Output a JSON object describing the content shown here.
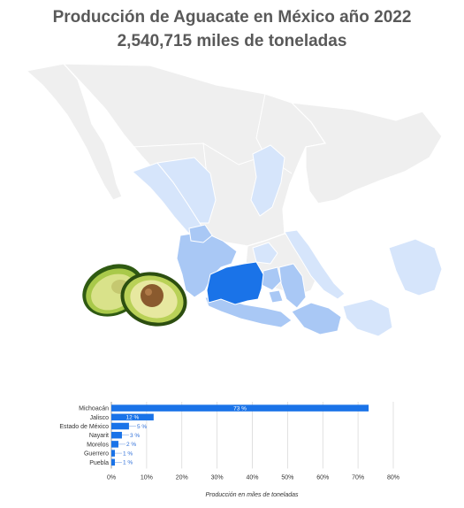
{
  "header": {
    "title": "Producción de Aguacate en México año 2022",
    "subtitle": "2,540,715 miles de toneladas"
  },
  "map": {
    "highlight_color": "#1A73E8",
    "medium_color": "#A9C8F5",
    "light_color": "#D6E5FB",
    "base_color": "#EFEFEF",
    "highlighted_state": "Michoacán"
  },
  "illustration": {
    "icon": "avocado-icon"
  },
  "chart_data": {
    "type": "bar",
    "orientation": "horizontal",
    "categories": [
      "Michoacán",
      "Jalisco",
      "Estado de México",
      "Nayarit",
      "Morelos",
      "Guerrero",
      "Puebla"
    ],
    "values": [
      73,
      12,
      5,
      3,
      2,
      1,
      1
    ],
    "data_labels": [
      "73 %",
      "12 %",
      "5 %",
      "3 %",
      "2 %",
      "1 %",
      "1 %"
    ],
    "xlabel": "Producción en miles de toneladas",
    "xlim": [
      0,
      80
    ],
    "xticks": [
      "0%",
      "10%",
      "20%",
      "30%",
      "40%",
      "50%",
      "60%",
      "70%",
      "80%"
    ],
    "grid": true,
    "bar_color": "#1A73E8"
  }
}
